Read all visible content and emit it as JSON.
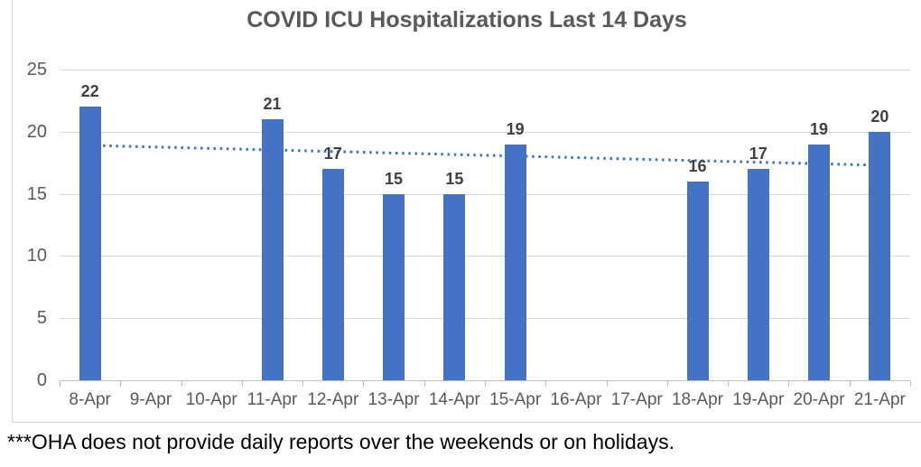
{
  "chart_data": {
    "type": "bar",
    "title": "COVID ICU Hospitalizations Last 14 Days",
    "categories": [
      "8-Apr",
      "9-Apr",
      "10-Apr",
      "11-Apr",
      "12-Apr",
      "13-Apr",
      "14-Apr",
      "15-Apr",
      "16-Apr",
      "17-Apr",
      "18-Apr",
      "19-Apr",
      "20-Apr",
      "21-Apr"
    ],
    "values": [
      22,
      null,
      null,
      21,
      17,
      15,
      15,
      19,
      null,
      null,
      16,
      17,
      19,
      20
    ],
    "xlabel": "",
    "ylabel": "",
    "ylim": [
      0,
      25
    ],
    "ytick_interval": 5,
    "grid": true,
    "legend": "none",
    "bar_color": "#4472C4",
    "title_color": "#595959",
    "axis_label_color": "#595959",
    "data_label_color": "#404040",
    "gridline_color": "#D9D9D9",
    "axis_line_color": "#BFBFBF",
    "trendline": {
      "style": "dotted",
      "color": "#4472C4",
      "start_value": 18.9,
      "end_value": 17.3
    },
    "footnote": "***OHA does not provide daily reports over the weekends or on holidays."
  }
}
